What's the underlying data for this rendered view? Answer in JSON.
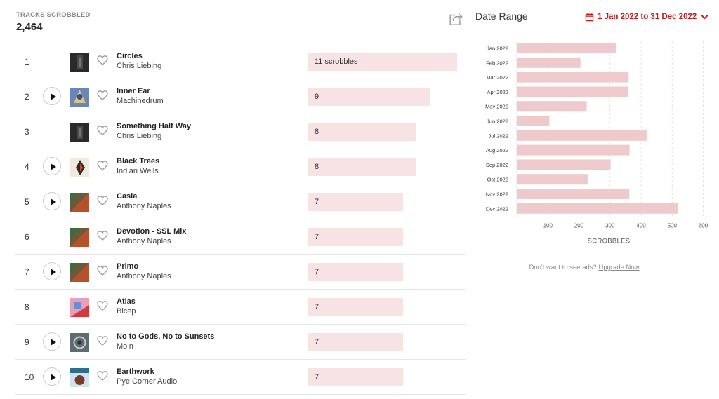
{
  "stats": {
    "label": "TRACKS SCROBBLED",
    "value": "2,464"
  },
  "share": {
    "icon": "share-icon"
  },
  "tracks": [
    {
      "rank": "1",
      "name": "Circles",
      "artist": "Chris Liebing",
      "scrobbles": 11,
      "label": "11 scrobbles",
      "play": false,
      "art": "dark"
    },
    {
      "rank": "2",
      "name": "Inner Ear",
      "artist": "Machinedrum",
      "scrobbles": 9,
      "label": "9",
      "play": true,
      "art": "blue"
    },
    {
      "rank": "3",
      "name": "Something Half Way",
      "artist": "Chris Liebing",
      "scrobbles": 8,
      "label": "8",
      "play": false,
      "art": "dark"
    },
    {
      "rank": "4",
      "name": "Black Trees",
      "artist": "Indian Wells",
      "scrobbles": 8,
      "label": "8",
      "play": true,
      "art": "light"
    },
    {
      "rank": "5",
      "name": "Casia",
      "artist": "Anthony Naples",
      "scrobbles": 7,
      "label": "7",
      "play": true,
      "art": "orange"
    },
    {
      "rank": "6",
      "name": "Devotion - SSL Mix",
      "artist": "Anthony Naples",
      "scrobbles": 7,
      "label": "7",
      "play": false,
      "art": "orange"
    },
    {
      "rank": "7",
      "name": "Primo",
      "artist": "Anthony Naples",
      "scrobbles": 7,
      "label": "7",
      "play": true,
      "art": "orange"
    },
    {
      "rank": "8",
      "name": "Atlas",
      "artist": "Bicep",
      "scrobbles": 7,
      "label": "7",
      "play": false,
      "art": "pink"
    },
    {
      "rank": "9",
      "name": "No to Gods, No to Sunsets",
      "artist": "Moin",
      "scrobbles": 7,
      "label": "7",
      "play": true,
      "art": "grey"
    },
    {
      "rank": "10",
      "name": "Earthwork",
      "artist": "Pye Corner Audio",
      "scrobbles": 7,
      "label": "7",
      "play": true,
      "art": "poster"
    }
  ],
  "date_range": {
    "label": "Date Range",
    "value": "1 Jan 2022 to 31 Dec 2022",
    "icon": "calendar-icon",
    "chevron": "chevron-down-icon"
  },
  "chart_data": {
    "type": "bar",
    "orientation": "horizontal",
    "categories": [
      "Jan 2022",
      "Feb 2022",
      "Mar 2022",
      "Apr 2022",
      "May 2022",
      "Jun 2022",
      "Jul 2022",
      "Aug 2022",
      "Sep 2022",
      "Oct 2022",
      "Nov 2022",
      "Dec 2022"
    ],
    "values": [
      320,
      205,
      360,
      357,
      225,
      105,
      418,
      363,
      302,
      228,
      362,
      520
    ],
    "xlabel": "SCROBBLES",
    "xticks": [
      100,
      200,
      300,
      400,
      500,
      600
    ],
    "xlim": [
      0,
      600
    ],
    "grid": true,
    "bar_color": "#efcacd",
    "grid_color": "#e4e4e4"
  },
  "ads": {
    "text": "Don't want to see ads?",
    "link": "Upgrade Now"
  },
  "colors": {
    "accent": "#c21b1b",
    "track_bar": "#f7e3e3"
  }
}
